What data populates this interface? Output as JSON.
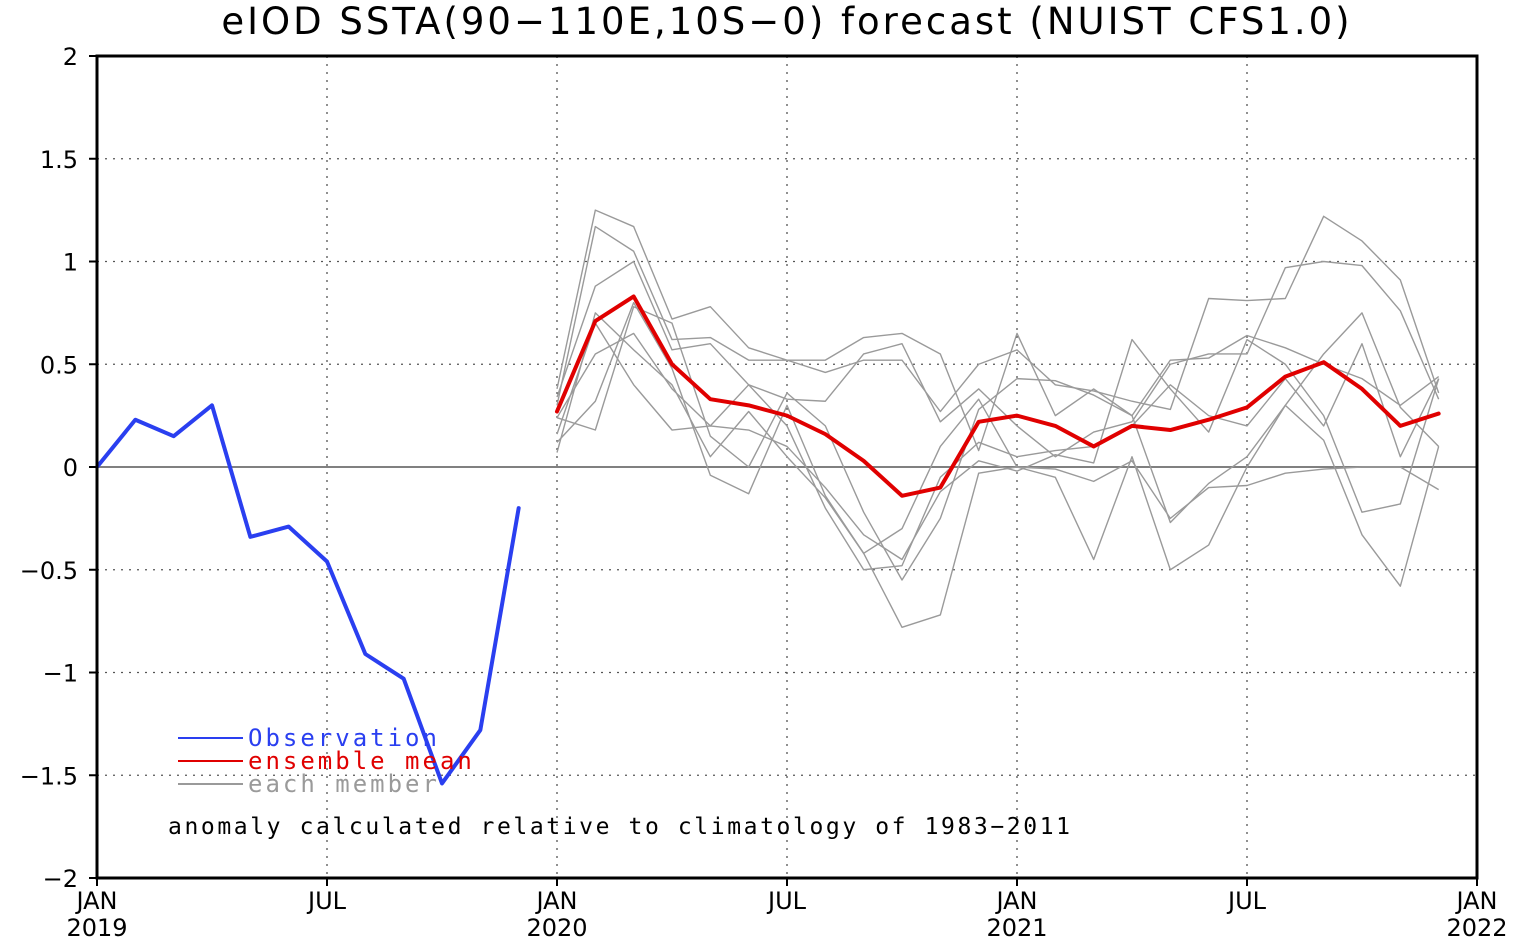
{
  "chart_data": {
    "type": "line",
    "title": "eIOD SSTA(90−110E,10S−0) forecast (NUIST CFS1.0)",
    "xlabel": "",
    "ylabel": "",
    "ylim": [
      -2,
      2
    ],
    "xlim": [
      "2019-01",
      "2022-01"
    ],
    "yticks": [
      "2",
      "1.5",
      "1",
      "0.5",
      "0",
      "−0.5",
      "−1",
      "−1.5",
      "−2"
    ],
    "xticks": [
      {
        "date": "2019-01",
        "label": "JAN",
        "year": "2019"
      },
      {
        "date": "2019-07",
        "label": "JUL",
        "year": ""
      },
      {
        "date": "2020-01",
        "label": "JAN",
        "year": "2020"
      },
      {
        "date": "2020-07",
        "label": "JUL",
        "year": ""
      },
      {
        "date": "2021-01",
        "label": "JAN",
        "year": "2021"
      },
      {
        "date": "2021-07",
        "label": "JUL",
        "year": ""
      },
      {
        "date": "2022-01",
        "label": "JAN",
        "year": "2022"
      }
    ],
    "grid": true,
    "zero_line": true,
    "legend_position": "bottom-left",
    "note": "anomaly calculated relative to climatology of 1983−2011",
    "series": [
      {
        "name": "Observation",
        "color": "#2a3ff0",
        "role": "observation",
        "x": [
          "2019-01",
          "2019-02",
          "2019-03",
          "2019-04",
          "2019-05",
          "2019-06",
          "2019-07",
          "2019-08",
          "2019-09",
          "2019-10",
          "2019-11",
          "2019-12"
        ],
        "values": [
          0.0,
          0.23,
          0.15,
          0.3,
          -0.34,
          -0.29,
          -0.46,
          -0.91,
          -1.03,
          -1.54,
          -1.28,
          -0.2
        ]
      },
      {
        "name": "ensemble mean",
        "color": "#e00000",
        "role": "mean",
        "x": [
          "2020-01",
          "2020-02",
          "2020-03",
          "2020-04",
          "2020-05",
          "2020-06",
          "2020-07",
          "2020-08",
          "2020-09",
          "2020-10",
          "2020-11",
          "2020-12",
          "2021-01",
          "2021-02",
          "2021-03",
          "2021-04",
          "2021-05",
          "2021-06",
          "2021-07",
          "2021-08",
          "2021-09",
          "2021-10",
          "2021-11",
          "2021-12"
        ],
        "values": [
          0.27,
          0.71,
          0.83,
          0.5,
          0.33,
          0.3,
          0.25,
          0.16,
          0.03,
          -0.14,
          -0.1,
          0.22,
          0.25,
          0.2,
          0.1,
          0.2,
          0.18,
          0.23,
          0.29,
          0.44,
          0.51,
          0.38,
          0.2,
          0.26
        ]
      }
    ],
    "members": {
      "name": "each member",
      "color": "#9a9a9a",
      "x": [
        "2020-01",
        "2020-02",
        "2020-03",
        "2020-04",
        "2020-05",
        "2020-06",
        "2020-07",
        "2020-08",
        "2020-09",
        "2020-10",
        "2020-11",
        "2020-12",
        "2021-01",
        "2021-02",
        "2021-03",
        "2021-04",
        "2021-05",
        "2021-06",
        "2021-07",
        "2021-08",
        "2021-09",
        "2021-10",
        "2021-11",
        "2021-12"
      ],
      "values": [
        [
          0.38,
          1.25,
          1.17,
          0.72,
          0.78,
          0.58,
          0.52,
          0.52,
          0.63,
          0.65,
          0.55,
          0.08,
          0.65,
          0.25,
          0.38,
          0.25,
          0.52,
          0.53,
          0.64,
          0.58,
          0.5,
          0.43,
          0.3,
          0.44
        ],
        [
          0.3,
          1.17,
          1.05,
          0.62,
          0.63,
          0.52,
          0.52,
          0.46,
          0.52,
          0.52,
          0.27,
          0.5,
          0.57,
          0.4,
          0.37,
          0.32,
          0.28,
          0.82,
          0.81,
          0.82,
          1.22,
          1.1,
          0.91,
          0.36
        ],
        [
          0.34,
          0.88,
          1.0,
          0.57,
          0.6,
          0.4,
          0.33,
          0.32,
          0.55,
          0.6,
          0.22,
          0.38,
          0.2,
          0.05,
          0.17,
          0.22,
          0.5,
          0.55,
          0.55,
          0.97,
          1.0,
          0.98,
          0.76,
          0.33
        ],
        [
          0.24,
          0.55,
          0.65,
          0.38,
          0.2,
          0.4,
          0.2,
          -0.2,
          -0.5,
          -0.48,
          -0.05,
          0.12,
          0.05,
          0.08,
          0.1,
          0.2,
          0.4,
          0.25,
          0.2,
          0.43,
          0.2,
          0.6,
          0.05,
          0.43
        ],
        [
          0.24,
          0.18,
          0.78,
          0.7,
          0.15,
          0.0,
          0.36,
          0.2,
          -0.22,
          -0.55,
          -0.25,
          0.28,
          0.43,
          0.42,
          0.35,
          0.25,
          -0.27,
          -0.08,
          0.05,
          0.3,
          0.55,
          0.75,
          0.29,
          0.1
        ],
        [
          0.16,
          0.7,
          0.4,
          0.18,
          0.2,
          0.18,
          0.1,
          -0.1,
          -0.33,
          -0.45,
          -0.12,
          0.03,
          -0.02,
          0.06,
          0.02,
          0.62,
          0.38,
          0.17,
          0.62,
          0.5,
          0.25,
          -0.22,
          -0.18,
          0.43
        ],
        [
          0.07,
          0.75,
          0.57,
          0.4,
          0.05,
          0.27,
          0.05,
          -0.15,
          -0.42,
          -0.3,
          0.1,
          0.33,
          0.0,
          -0.05,
          -0.45,
          0.05,
          -0.5,
          -0.38,
          0.0,
          0.3,
          0.13,
          -0.33,
          -0.58,
          0.1
        ],
        [
          0.12,
          0.32,
          0.8,
          0.48,
          -0.04,
          -0.13,
          0.3,
          -0.14,
          -0.42,
          -0.78,
          -0.72,
          -0.03,
          0.0,
          -0.01,
          -0.07,
          0.03,
          -0.25,
          -0.1,
          -0.09,
          -0.03,
          -0.01,
          0.0,
          0.0,
          -0.11
        ]
      ]
    }
  }
}
